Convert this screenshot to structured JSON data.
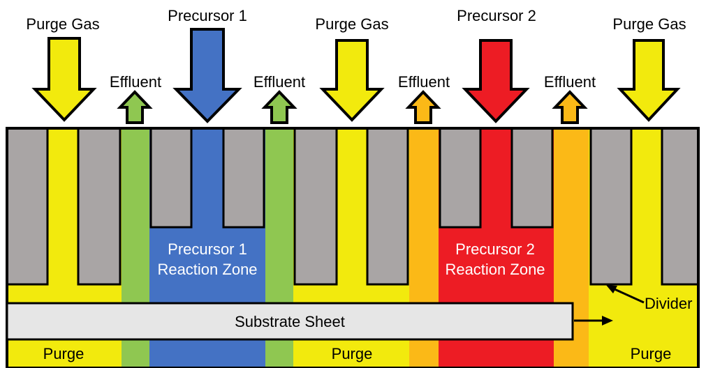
{
  "inlets": {
    "purge_gas_1": "Purge Gas",
    "precursor_1": "Precursor 1",
    "purge_gas_2": "Purge Gas",
    "precursor_2": "Precursor 2",
    "purge_gas_3": "Purge Gas"
  },
  "outlets": {
    "effluent_1": "Effluent",
    "effluent_2": "Effluent",
    "effluent_3": "Effluent",
    "effluent_4": "Effluent"
  },
  "zones": {
    "precursor_1_zone_line1": "Precursor 1",
    "precursor_1_zone_line2": "Reaction Zone",
    "precursor_2_zone_line1": "Precursor 2",
    "precursor_2_zone_line2": "Reaction Zone",
    "purge_1": "Purge",
    "purge_2": "Purge",
    "purge_3": "Purge"
  },
  "labels": {
    "substrate": "Substrate Sheet",
    "divider": "Divider"
  },
  "colors": {
    "purge": "#f2ea0d",
    "precursor_1": "#4472c4",
    "precursor_2": "#ed1c24",
    "effluent_1": "#8fc751",
    "effluent_2": "#fbb917",
    "divider": "#a9a5a5",
    "substrate": "#e6e6e6"
  }
}
